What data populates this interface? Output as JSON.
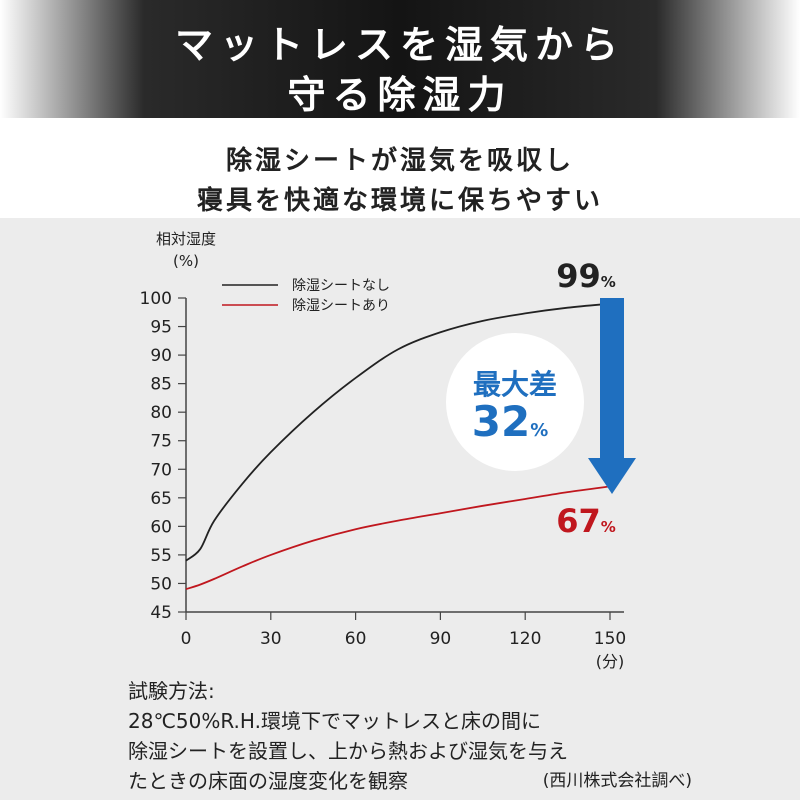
{
  "header": {
    "title_line1": "マットレスを湿気から",
    "title_line2": "守る除湿力"
  },
  "subtitle": {
    "line1": "除湿シートが湿気を吸収し",
    "line2": "寝具を快適な環境に保ちやすい"
  },
  "chart_data": {
    "type": "line",
    "ylabel_line1": "相対湿度",
    "ylabel_line2": "(%)",
    "xunit": "(分)",
    "x": [
      0,
      5,
      10,
      20,
      30,
      45,
      60,
      75,
      90,
      105,
      120,
      135,
      150
    ],
    "series": [
      {
        "name": "除湿シートなし",
        "color": "#222222",
        "values": [
          54,
          56,
          61,
          67.5,
          73,
          80,
          86,
          91,
          94,
          96,
          97.3,
          98.3,
          99
        ]
      },
      {
        "name": "除湿シートあり",
        "color": "#c0171e",
        "values": [
          49,
          49.8,
          50.8,
          53,
          55,
          57.5,
          59.5,
          61,
          62.3,
          63.6,
          64.8,
          66,
          67
        ]
      }
    ],
    "xticks": [
      0,
      30,
      60,
      90,
      120,
      150
    ],
    "yticks": [
      45,
      50,
      55,
      60,
      65,
      70,
      75,
      80,
      85,
      90,
      95,
      100
    ],
    "xlim": [
      0,
      150
    ],
    "ylim": [
      45,
      100
    ],
    "annotations": {
      "end_high_value": "99",
      "end_low_value": "67",
      "percent_sign": "%",
      "diff_label": "最大差",
      "diff_value": "32"
    },
    "colors": {
      "accent_blue": "#1f6fbf",
      "red": "#c0171e",
      "dark": "#222222"
    },
    "legend": "top-left"
  },
  "method": {
    "heading": "試験方法:",
    "line1": "28℃50%R.H.環境下でマットレスと床の間に",
    "line2": "除湿シートを設置し、上から熱および湿気を与え",
    "line3": "たときの床面の湿度変化を観察",
    "credit": "(西川株式会社調べ)"
  }
}
